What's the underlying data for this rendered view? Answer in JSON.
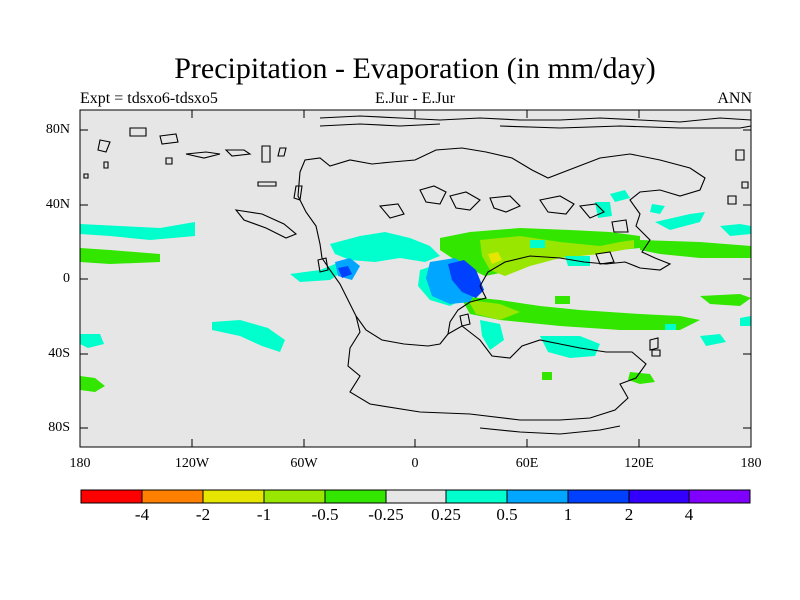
{
  "header": {
    "title": "Precipitation - Evaporation (in mm/day)",
    "left": "Expt = tdsxo6-tdsxo5",
    "center": "E.Jur - E.Jur",
    "right": "ANN"
  },
  "axes": {
    "y_ticks": [
      "80N",
      "40N",
      "0",
      "40S",
      "80S"
    ],
    "x_ticks": [
      "180",
      "120W",
      "60W",
      "0",
      "60E",
      "120E",
      "180"
    ]
  },
  "colorbar": {
    "labels": [
      "-4",
      "-2",
      "-1",
      "-0.5",
      "-0.25",
      "0.25",
      "0.5",
      "1",
      "2",
      "4"
    ],
    "colors": [
      "#ff0000",
      "#ff8000",
      "#e6e600",
      "#99e600",
      "#33e600",
      "#e6e6e6",
      "#00ffcc",
      "#00a6ff",
      "#0040ff",
      "#3300ff",
      "#8000ff"
    ]
  },
  "map_colors": {
    "background": "#e6e6e6",
    "green": "#33e600",
    "lightgreen": "#99e600",
    "yellow": "#e6e600",
    "cyan": "#00ffcc",
    "lightblue": "#00a6ff",
    "blue": "#0040ff",
    "coast": "#000000"
  }
}
